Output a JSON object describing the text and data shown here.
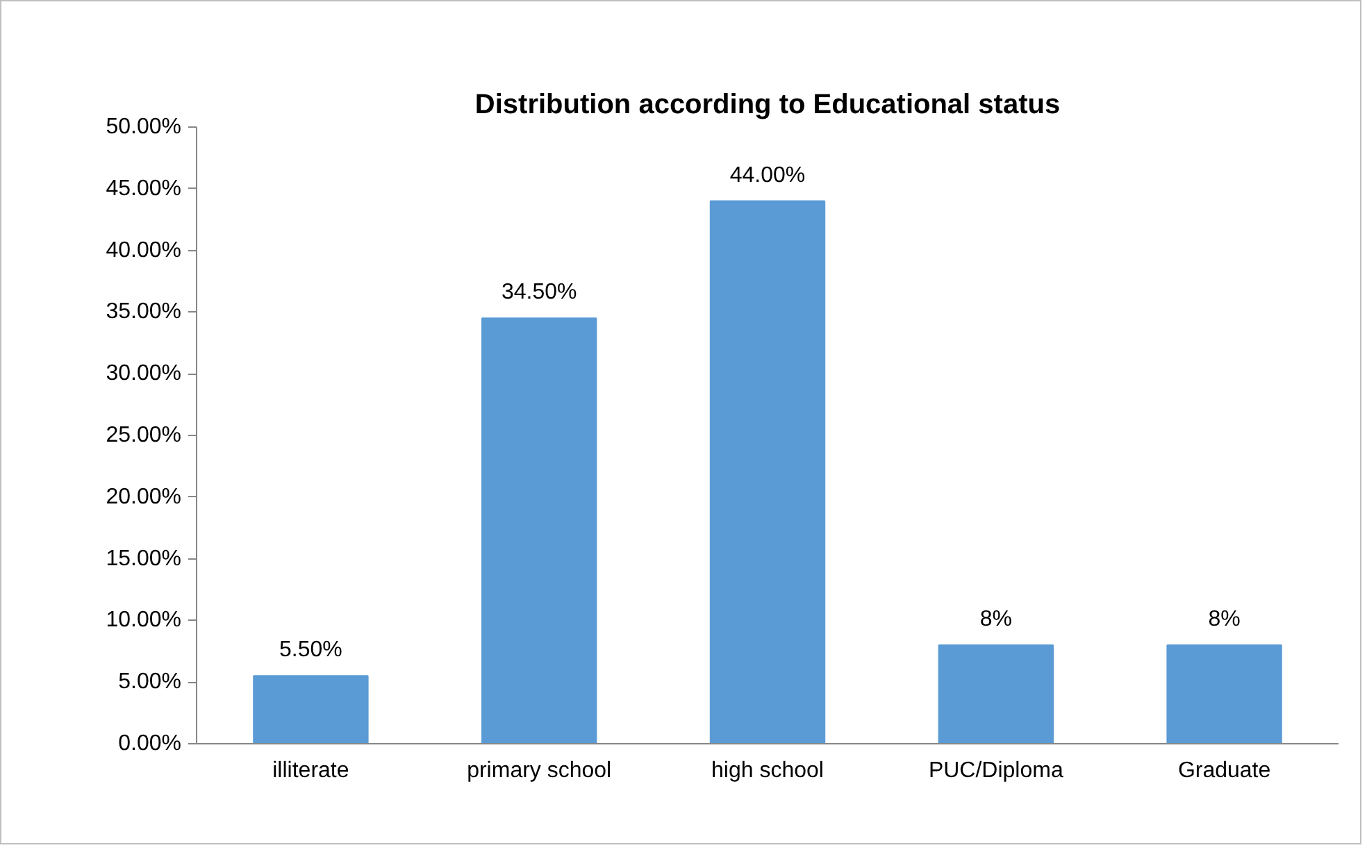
{
  "chart_data": {
    "type": "bar",
    "title": "Distribution according to Educational status",
    "categories": [
      "illiterate",
      "primary school",
      "high school",
      "PUC/Diploma",
      "Graduate"
    ],
    "values": [
      5.5,
      34.5,
      44,
      8,
      8
    ],
    "value_labels": [
      "5.50%",
      "34.50%",
      "44.00%",
      "8%",
      "8%"
    ],
    "color": "#5b9bd5",
    "ylim": [
      0,
      50
    ],
    "yticks": [
      {
        "value": 0,
        "label": "0.00%"
      },
      {
        "value": 5,
        "label": "5.00%"
      },
      {
        "value": 10,
        "label": "10.00%"
      },
      {
        "value": 15,
        "label": "15.00%"
      },
      {
        "value": 20,
        "label": "20.00%"
      },
      {
        "value": 25,
        "label": "25.00%"
      },
      {
        "value": 30,
        "label": "30.00%"
      },
      {
        "value": 35,
        "label": "35.00%"
      },
      {
        "value": 40,
        "label": "40.00%"
      },
      {
        "value": 45,
        "label": "45.00%"
      },
      {
        "value": 50,
        "label": "50.00%"
      }
    ],
    "grid": false
  }
}
